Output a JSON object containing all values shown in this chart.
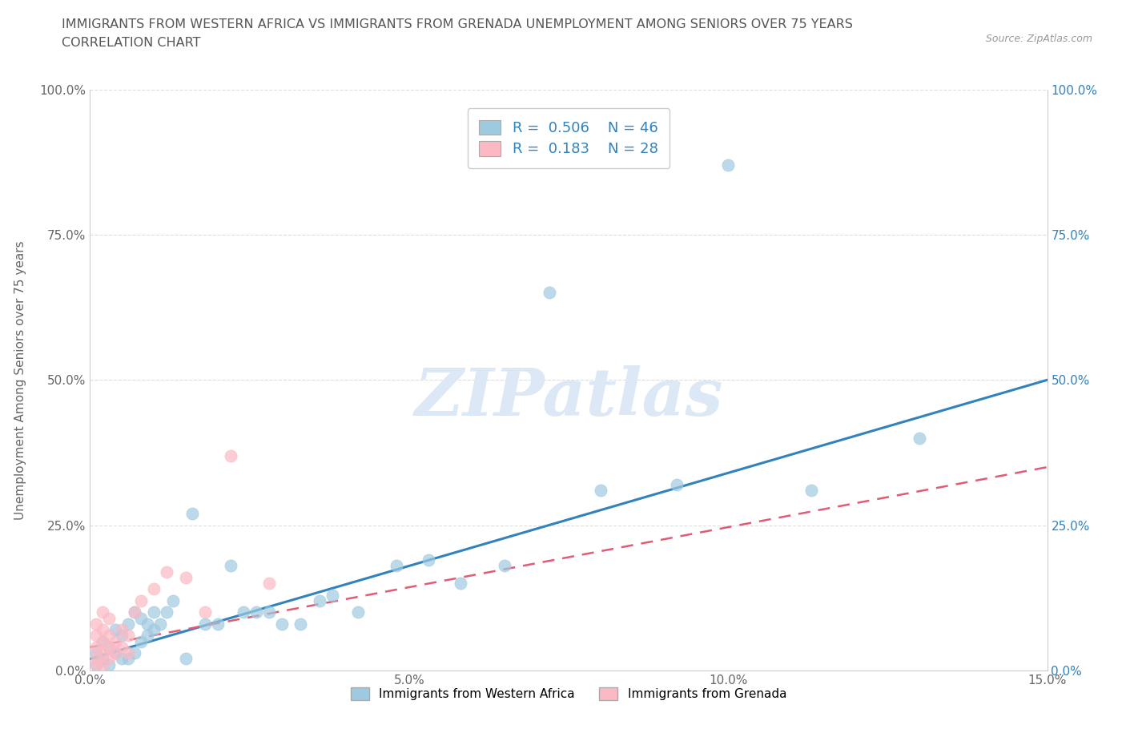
{
  "title_line1": "IMMIGRANTS FROM WESTERN AFRICA VS IMMIGRANTS FROM GRENADA UNEMPLOYMENT AMONG SENIORS OVER 75 YEARS",
  "title_line2": "CORRELATION CHART",
  "source": "Source: ZipAtlas.com",
  "ylabel": "Unemployment Among Seniors over 75 years",
  "xlim": [
    0.0,
    0.15
  ],
  "ylim": [
    0.0,
    1.0
  ],
  "color_blue": "#9ecae1",
  "color_pink": "#fcb9c4",
  "color_blue_line": "#3182bd",
  "color_pink_line": "#e05c75",
  "color_blue_right": "#3182bd",
  "watermark_color": "#dce8f5",
  "background_color": "#ffffff",
  "grid_color": "#dddddd",
  "blue_scatter_x": [
    0.001,
    0.001,
    0.002,
    0.002,
    0.003,
    0.003,
    0.004,
    0.004,
    0.005,
    0.005,
    0.006,
    0.006,
    0.007,
    0.007,
    0.008,
    0.008,
    0.009,
    0.009,
    0.01,
    0.01,
    0.011,
    0.012,
    0.013,
    0.015,
    0.016,
    0.018,
    0.02,
    0.022,
    0.024,
    0.026,
    0.028,
    0.03,
    0.033,
    0.036,
    0.038,
    0.042,
    0.048,
    0.053,
    0.058,
    0.065,
    0.072,
    0.08,
    0.092,
    0.1,
    0.113,
    0.13
  ],
  "blue_scatter_y": [
    0.01,
    0.03,
    0.02,
    0.05,
    0.01,
    0.04,
    0.03,
    0.07,
    0.02,
    0.06,
    0.02,
    0.08,
    0.03,
    0.1,
    0.05,
    0.09,
    0.06,
    0.08,
    0.07,
    0.1,
    0.08,
    0.1,
    0.12,
    0.02,
    0.27,
    0.08,
    0.08,
    0.18,
    0.1,
    0.1,
    0.1,
    0.08,
    0.08,
    0.12,
    0.13,
    0.1,
    0.18,
    0.19,
    0.15,
    0.18,
    0.65,
    0.31,
    0.32,
    0.87,
    0.31,
    0.4
  ],
  "pink_scatter_x": [
    0.001,
    0.001,
    0.001,
    0.001,
    0.001,
    0.002,
    0.002,
    0.002,
    0.002,
    0.002,
    0.003,
    0.003,
    0.003,
    0.003,
    0.004,
    0.004,
    0.005,
    0.005,
    0.006,
    0.006,
    0.007,
    0.008,
    0.01,
    0.012,
    0.015,
    0.018,
    0.022,
    0.028
  ],
  "pink_scatter_y": [
    0.01,
    0.02,
    0.04,
    0.06,
    0.08,
    0.01,
    0.03,
    0.05,
    0.07,
    0.1,
    0.02,
    0.04,
    0.06,
    0.09,
    0.03,
    0.05,
    0.04,
    0.07,
    0.03,
    0.06,
    0.1,
    0.12,
    0.14,
    0.17,
    0.16,
    0.1,
    0.37,
    0.15
  ],
  "blue_line_x0": 0.0,
  "blue_line_x1": 0.15,
  "blue_line_y0": 0.02,
  "blue_line_y1": 0.5,
  "pink_line_x0": 0.0,
  "pink_line_x1": 0.15,
  "pink_line_y0": 0.04,
  "pink_line_y1": 0.35
}
